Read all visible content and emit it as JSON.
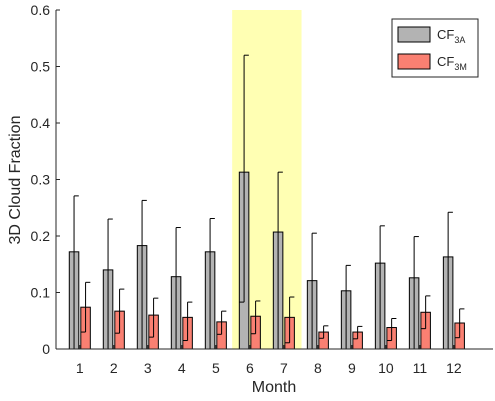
{
  "chart_data": {
    "type": "bar",
    "xlabel": "Month",
    "ylabel": "3D Cloud Fraction",
    "ylim": [
      0,
      0.6
    ],
    "yticks": [
      "0",
      "0.1",
      "0.2",
      "0.3",
      "0.4",
      "0.5",
      "0.6"
    ],
    "categories": [
      "1",
      "2",
      "3",
      "4",
      "5",
      "6",
      "7",
      "8",
      "9",
      "10",
      "11",
      "12"
    ],
    "highlight": {
      "from": "6",
      "to": "7",
      "color": "#ffffb3"
    },
    "legend_position": "top-right",
    "series": [
      {
        "name": "CF",
        "name_sub": "3A",
        "color": "#b3b3b3",
        "values": [
          0.172,
          0.14,
          0.183,
          0.128,
          0.172,
          0.313,
          0.207,
          0.121,
          0.103,
          0.152,
          0.126,
          0.163
        ],
        "err_upper": [
          0.271,
          0.23,
          0.263,
          0.215,
          0.231,
          0.52,
          0.313,
          0.205,
          0.148,
          0.218,
          0.199,
          0.242
        ],
        "err_lower": [
          0.0,
          0.0,
          0.0,
          0.0,
          0.0,
          0.083,
          0.0,
          0.0,
          0.0,
          0.0,
          0.0,
          0.0
        ]
      },
      {
        "name": "CF",
        "name_sub": "3M",
        "color": "#fa8072",
        "values": [
          0.074,
          0.067,
          0.06,
          0.056,
          0.048,
          0.058,
          0.056,
          0.03,
          0.03,
          0.038,
          0.065,
          0.046
        ],
        "err_upper": [
          0.118,
          0.106,
          0.09,
          0.083,
          0.067,
          0.085,
          0.092,
          0.041,
          0.04,
          0.054,
          0.094,
          0.071
        ],
        "err_lower": [
          0.03,
          0.028,
          0.021,
          0.015,
          0.026,
          0.027,
          0.011,
          0.019,
          0.018,
          0.015,
          0.036,
          0.02
        ]
      }
    ]
  }
}
